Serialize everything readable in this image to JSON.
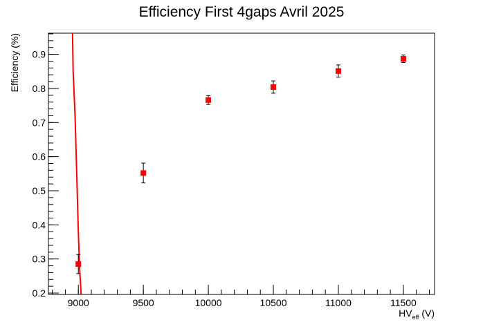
{
  "chart_data": {
    "type": "scatter",
    "title": "Efficiency First 4gaps Avril 2025",
    "xlabel_main": "HV",
    "xlabel_sub": "eff",
    "xlabel_unit": " (V)",
    "ylabel": "Efficiency (%)",
    "xlim": [
      8770,
      11740
    ],
    "ylim": [
      0.196,
      0.962
    ],
    "x_ticks": [
      9000,
      9500,
      10000,
      10500,
      11000,
      11500
    ],
    "y_ticks": [
      0.2,
      0.3,
      0.4,
      0.5,
      0.6,
      0.7,
      0.8,
      0.9
    ],
    "x_tick_labels": [
      "9000",
      "9500",
      "10000",
      "10500",
      "11000",
      "11500"
    ],
    "y_tick_labels": [
      "0.2",
      "0.3",
      "0.4",
      "0.5",
      "0.6",
      "0.7",
      "0.8",
      "0.9"
    ],
    "grid": false,
    "marker_color": "#ff0000",
    "fit_color": "#ff0000",
    "points": [
      {
        "x": 9000,
        "y": 0.285,
        "err": 0.028
      },
      {
        "x": 9500,
        "y": 0.552,
        "err": 0.029
      },
      {
        "x": 10000,
        "y": 0.766,
        "err": 0.013
      },
      {
        "x": 10500,
        "y": 0.804,
        "err": 0.018
      },
      {
        "x": 11000,
        "y": 0.851,
        "err": 0.018
      },
      {
        "x": 11500,
        "y": 0.887,
        "err": 0.011
      }
    ],
    "fit_curve": [
      {
        "x": 8955,
        "y": 0.962
      },
      {
        "x": 8960,
        "y": 0.85
      },
      {
        "x": 8975,
        "y": 0.72
      },
      {
        "x": 8990,
        "y": 0.52
      },
      {
        "x": 9000,
        "y": 0.38
      },
      {
        "x": 9010,
        "y": 0.27
      },
      {
        "x": 9022,
        "y": 0.196
      }
    ]
  }
}
